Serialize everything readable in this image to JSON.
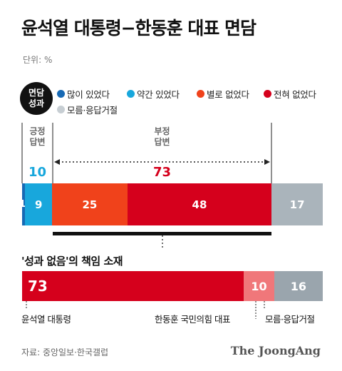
{
  "title": "윤석열 대통령−한동훈 대표 면담",
  "unit": "단위: %",
  "legend": {
    "badge": [
      "면담",
      "성과"
    ],
    "items": [
      {
        "label": "많이 있었다",
        "color": "#1769b4"
      },
      {
        "label": "약간 있었다",
        "color": "#18a7dc"
      },
      {
        "label": "별로 없었다",
        "color": "#f0421b"
      },
      {
        "label": "전혀 없었다",
        "color": "#d5001c"
      },
      {
        "label": "모름·응답거절",
        "color": "#c7ced3"
      }
    ]
  },
  "chart_data": [
    {
      "type": "bar",
      "orientation": "horizontal-stacked",
      "title": "",
      "categories": [
        "많이 있었다",
        "약간 있었다",
        "별로 없었다",
        "전혀 없었다",
        "모름·응답거절"
      ],
      "values": [
        1,
        9,
        25,
        48,
        17
      ],
      "colors": [
        "#1769b4",
        "#18a7dc",
        "#f0421b",
        "#d5001c",
        "#aab4bb"
      ],
      "groups": [
        {
          "label": [
            "긍정",
            "답변"
          ],
          "value": 10,
          "color": "#18a7dc"
        },
        {
          "label": [
            "부정",
            "답변"
          ],
          "value": 73,
          "color": "#d5001c"
        }
      ]
    },
    {
      "type": "bar",
      "orientation": "horizontal-stacked",
      "title": "'성과 없음'의 책임 소재",
      "categories": [
        "윤석열 대통령",
        "한동훈 국민의힘 대표",
        "모름·응답거절"
      ],
      "values": [
        73,
        10,
        16
      ],
      "colors": [
        "#d5001c",
        "#f0777a",
        "#9aa5ad"
      ]
    }
  ],
  "source": "자료: 중앙일보·한국갤럽",
  "brand": "The JoongAng"
}
